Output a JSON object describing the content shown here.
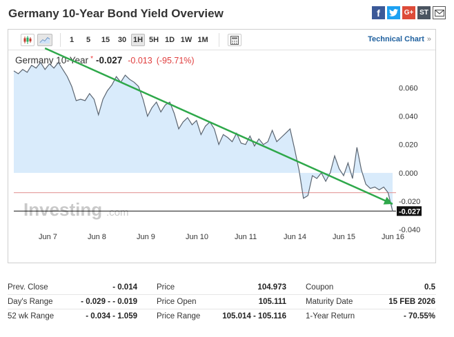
{
  "page": {
    "title": "Germany 10-Year Bond Yield Overview"
  },
  "social": [
    {
      "name": "facebook-icon",
      "glyph": "f"
    },
    {
      "name": "twitter-icon",
      "glyph": "t"
    },
    {
      "name": "google-plus-icon",
      "glyph": "G+"
    },
    {
      "name": "stocktwits-icon",
      "glyph": "ST"
    },
    {
      "name": "email-icon",
      "glyph": "✉"
    }
  ],
  "toolbar": {
    "timeframes": [
      "1",
      "5",
      "15",
      "30",
      "1H",
      "5H",
      "1D",
      "1W",
      "1M"
    ],
    "active_timeframe": "1H",
    "technical_chart_label": "Technical Chart",
    "technical_chart_chevron": "»"
  },
  "quote": {
    "name": "Germany 10-Year",
    "star": "*",
    "last": "-0.027",
    "change": "-0.013",
    "change_pct": "(-95.71%)"
  },
  "colors": {
    "area_fill": "#d9ebfb",
    "line": "#5a6470",
    "trend_arrow": "#2ea84a",
    "prev_close_line": "#e08f8f",
    "current_line": "#111111",
    "negative": "#e03c3c",
    "link": "#1d5f9e"
  },
  "watermark": {
    "brand": "Investing",
    "suffix": ".com"
  },
  "chart_data": {
    "type": "area",
    "title": "",
    "xlabel": "",
    "ylabel": "",
    "ylim": [
      -0.04,
      0.07
    ],
    "yticks": [
      "0.060",
      "0.040",
      "0.020",
      "0.000",
      "-0.020",
      "-0.040"
    ],
    "ytick_values": [
      0.06,
      0.04,
      0.02,
      0.0,
      -0.02,
      -0.04
    ],
    "xtick_labels": [
      "Jun 7",
      "Jun 8",
      "Jun 9",
      "Jun 10",
      "Jun 11",
      "Jun 14",
      "Jun 15",
      "Jun 16"
    ],
    "baseline": 0.0,
    "prev_close": -0.014,
    "last_value": -0.027,
    "last_value_label": "-0.027",
    "series": [
      {
        "values": [
          0.072,
          0.07,
          0.073,
          0.071,
          0.076,
          0.074,
          0.078,
          0.073,
          0.077,
          0.074,
          0.078,
          0.073,
          0.068,
          0.061,
          0.051,
          0.052,
          0.051,
          0.056,
          0.052,
          0.041,
          0.052,
          0.058,
          0.062,
          0.068,
          0.064,
          0.069,
          0.066,
          0.064,
          0.061,
          0.052,
          0.04,
          0.046,
          0.05,
          0.043,
          0.048,
          0.05,
          0.042,
          0.031,
          0.036,
          0.039,
          0.034,
          0.037,
          0.027,
          0.033,
          0.036,
          0.031,
          0.02,
          0.027,
          0.025,
          0.022,
          0.028,
          0.021,
          0.02,
          0.026,
          0.019,
          0.024,
          0.02,
          0.022,
          0.03,
          0.022,
          0.025,
          0.028,
          0.031,
          0.017,
          0.002,
          -0.018,
          -0.016,
          -0.002,
          -0.004,
          0.0,
          -0.006,
          0.0,
          0.012,
          0.003,
          -0.002,
          0.007,
          -0.004,
          0.018,
          0.002,
          -0.008,
          -0.011,
          -0.01,
          -0.012,
          -0.01,
          -0.014,
          -0.027
        ]
      }
    ],
    "trend_annotation": {
      "type": "arrow",
      "from": {
        "x_index": 7,
        "y": 0.088
      },
      "to": {
        "x_index": 85,
        "y": -0.022
      }
    }
  },
  "stats": {
    "columns": [
      [
        {
          "label": "Prev. Close",
          "value": "- 0.014"
        },
        {
          "label": "Day's Range",
          "value": "- 0.029 - - 0.019"
        },
        {
          "label": "52 wk Range",
          "value": "- 0.034 - 1.059"
        }
      ],
      [
        {
          "label": "Price",
          "value": "104.973"
        },
        {
          "label": "Price Open",
          "value": "105.111"
        },
        {
          "label": "Price Range",
          "value": "105.014 - 105.116"
        }
      ],
      [
        {
          "label": "Coupon",
          "value": "0.5"
        },
        {
          "label": "Maturity Date",
          "value": "15 FEB 2026"
        },
        {
          "label": "1-Year Return",
          "value": "- 70.55%"
        }
      ]
    ]
  }
}
